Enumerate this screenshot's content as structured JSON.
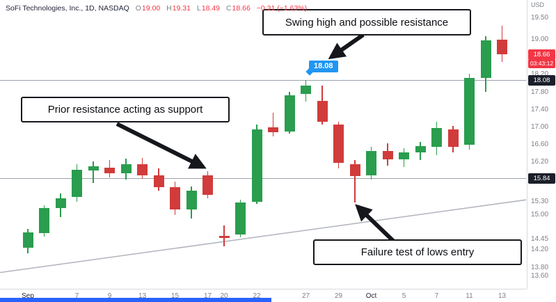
{
  "header": {
    "title": "SoFi Technologies, Inc., 1D, NASDAQ",
    "ohlc": {
      "o_label": "O",
      "o": "19.00",
      "h_label": "H",
      "h": "19.31",
      "l_label": "L",
      "l": "18.49",
      "c_label": "C",
      "c": "18.66",
      "change": "−0.31 (−1.63%)"
    }
  },
  "annotations": {
    "swing_high": "Swing high and possible resistance",
    "prior_resistance": "Prior resistance acting as support",
    "failure_test": "Failure test of lows entry",
    "price_tag": "18.08"
  },
  "price_axis": {
    "currency": "USD",
    "labels": [
      19.5,
      19.0,
      18.2,
      17.8,
      17.4,
      17.0,
      16.6,
      16.2,
      15.3,
      15.0,
      14.45,
      14.2,
      13.8,
      13.6
    ],
    "last_price_badge": {
      "value": "18.66",
      "countdown": "03:43:12"
    }
  },
  "time_axis": {
    "labels": [
      {
        "text": "Sep",
        "i": 0,
        "major": true
      },
      {
        "text": "7",
        "i": 3
      },
      {
        "text": "9",
        "i": 5
      },
      {
        "text": "13",
        "i": 7
      },
      {
        "text": "15",
        "i": 9
      },
      {
        "text": "17",
        "i": 11
      },
      {
        "text": "20",
        "i": 12
      },
      {
        "text": "22",
        "i": 14
      },
      {
        "text": "27",
        "i": 17
      },
      {
        "text": "29",
        "i": 19
      },
      {
        "text": "Oct",
        "i": 21,
        "major": true
      },
      {
        "text": "5",
        "i": 23
      },
      {
        "text": "7",
        "i": 25
      },
      {
        "text": "11",
        "i": 27
      },
      {
        "text": "13",
        "i": 29
      }
    ]
  },
  "chart_data": {
    "type": "candlestick",
    "symbol": "SOFI",
    "title": "SoFi Technologies, Inc.",
    "interval": "1D",
    "exchange": "NASDAQ",
    "price_range": [
      13.6,
      19.5
    ],
    "last_price": 18.66,
    "levels": [
      {
        "price": 18.08,
        "label": "18.08"
      },
      {
        "price": 15.84,
        "label": "15.84"
      }
    ],
    "trendline": {
      "p1": {
        "i": -1.7,
        "price": 13.68
      },
      "p2": {
        "i": 30.5,
        "price": 15.34
      }
    },
    "colors": {
      "up": "#2a9d4e",
      "down": "#d13b3b"
    },
    "ohlc": [
      {
        "d": "Sep 1",
        "o": 14.25,
        "h": 14.68,
        "l": 14.12,
        "c": 14.6
      },
      {
        "d": "Sep 2",
        "o": 14.58,
        "h": 15.22,
        "l": 14.5,
        "c": 15.15
      },
      {
        "d": "Sep 3",
        "o": 15.15,
        "h": 15.48,
        "l": 14.95,
        "c": 15.38
      },
      {
        "d": "Sep 7",
        "o": 15.4,
        "h": 16.15,
        "l": 15.3,
        "c": 16.02
      },
      {
        "d": "Sep 8",
        "o": 16.0,
        "h": 16.22,
        "l": 15.72,
        "c": 16.1
      },
      {
        "d": "Sep 9",
        "o": 16.08,
        "h": 16.25,
        "l": 15.85,
        "c": 15.95
      },
      {
        "d": "Sep 10",
        "o": 15.95,
        "h": 16.28,
        "l": 15.8,
        "c": 16.15
      },
      {
        "d": "Sep 13",
        "o": 16.15,
        "h": 16.3,
        "l": 15.82,
        "c": 15.9
      },
      {
        "d": "Sep 14",
        "o": 15.9,
        "h": 16.05,
        "l": 15.55,
        "c": 15.62
      },
      {
        "d": "Sep 15",
        "o": 15.62,
        "h": 15.75,
        "l": 15.0,
        "c": 15.12
      },
      {
        "d": "Sep 16",
        "o": 15.12,
        "h": 15.65,
        "l": 14.92,
        "c": 15.55
      },
      {
        "d": "Sep 17",
        "o": 15.9,
        "h": 16.0,
        "l": 15.38,
        "c": 15.45
      },
      {
        "d": "Sep 20",
        "o": 14.52,
        "h": 14.75,
        "l": 14.28,
        "c": 14.46
      },
      {
        "d": "Sep 21",
        "o": 14.55,
        "h": 15.35,
        "l": 14.48,
        "c": 15.28
      },
      {
        "d": "Sep 22",
        "o": 15.3,
        "h": 17.05,
        "l": 15.25,
        "c": 16.95
      },
      {
        "d": "Sep 23",
        "o": 17.0,
        "h": 17.32,
        "l": 16.78,
        "c": 16.88
      },
      {
        "d": "Sep 24",
        "o": 16.9,
        "h": 17.8,
        "l": 16.85,
        "c": 17.72
      },
      {
        "d": "Sep 27",
        "o": 17.75,
        "h": 18.08,
        "l": 17.58,
        "c": 17.95
      },
      {
        "d": "Sep 28",
        "o": 17.6,
        "h": 17.95,
        "l": 17.05,
        "c": 17.12
      },
      {
        "d": "Sep 29",
        "o": 17.05,
        "h": 17.12,
        "l": 16.05,
        "c": 16.18
      },
      {
        "d": "Sep 30",
        "o": 16.15,
        "h": 16.25,
        "l": 15.28,
        "c": 15.88
      },
      {
        "d": "Oct 1",
        "o": 15.9,
        "h": 16.55,
        "l": 15.8,
        "c": 16.45
      },
      {
        "d": "Oct 4",
        "o": 16.45,
        "h": 16.62,
        "l": 16.12,
        "c": 16.26
      },
      {
        "d": "Oct 5",
        "o": 16.26,
        "h": 16.52,
        "l": 16.08,
        "c": 16.42
      },
      {
        "d": "Oct 6",
        "o": 16.42,
        "h": 16.66,
        "l": 16.24,
        "c": 16.56
      },
      {
        "d": "Oct 7",
        "o": 16.55,
        "h": 17.12,
        "l": 16.35,
        "c": 16.98
      },
      {
        "d": "Oct 8",
        "o": 16.95,
        "h": 17.02,
        "l": 16.42,
        "c": 16.55
      },
      {
        "d": "Oct 11",
        "o": 16.6,
        "h": 18.22,
        "l": 16.48,
        "c": 18.12
      },
      {
        "d": "Oct 12",
        "o": 18.12,
        "h": 19.08,
        "l": 17.8,
        "c": 18.98
      },
      {
        "d": "Oct 13",
        "o": 19.0,
        "h": 19.31,
        "l": 18.49,
        "c": 18.66
      }
    ]
  },
  "ui_colors": {
    "accent_bar": "#2962ff",
    "tag_blue": "#2196f3",
    "badge_dark": "#1b1f2a",
    "badge_red": "#f23645",
    "level_line": "#9ba1ad",
    "trendline": "#b0b4bd"
  }
}
